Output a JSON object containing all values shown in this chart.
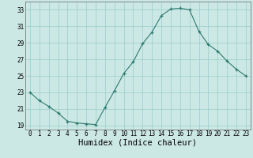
{
  "x": [
    0,
    1,
    2,
    3,
    4,
    5,
    6,
    7,
    8,
    9,
    10,
    11,
    12,
    13,
    14,
    15,
    16,
    17,
    18,
    19,
    20,
    21,
    22,
    23
  ],
  "y": [
    23.0,
    22.0,
    21.3,
    20.5,
    19.5,
    19.3,
    19.2,
    19.1,
    21.2,
    23.2,
    25.3,
    26.7,
    28.9,
    30.3,
    32.3,
    33.1,
    33.2,
    33.0,
    30.4,
    28.8,
    28.0,
    26.8,
    25.8,
    25.0
  ],
  "xlim": [
    -0.5,
    23.5
  ],
  "ylim": [
    18.5,
    34.0
  ],
  "yticks": [
    19,
    21,
    23,
    25,
    27,
    29,
    31,
    33
  ],
  "xticks": [
    0,
    1,
    2,
    3,
    4,
    5,
    6,
    7,
    8,
    9,
    10,
    11,
    12,
    13,
    14,
    15,
    16,
    17,
    18,
    19,
    20,
    21,
    22,
    23
  ],
  "xlabel": "Humidex (Indice chaleur)",
  "line_color": "#2d7a6e",
  "marker": "+",
  "bg_color": "#cce8e5",
  "grid_color": "#99ccca",
  "tick_label_fontsize": 5.5,
  "xlabel_fontsize": 7.5
}
